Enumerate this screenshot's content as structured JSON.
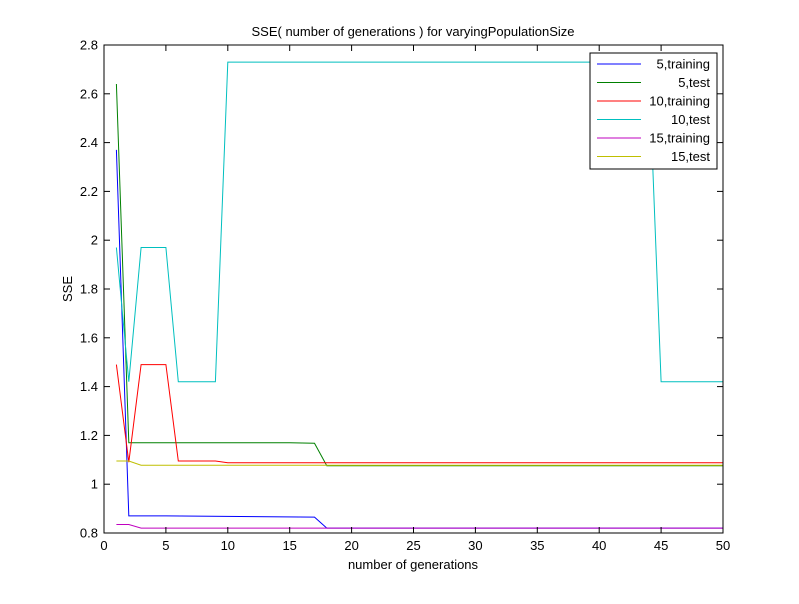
{
  "chart_data": {
    "type": "line",
    "title": "SSE( number of generations ) for varyingPopulationSize",
    "xlabel": "number of generations",
    "ylabel": "SSE",
    "xlim": [
      0,
      50
    ],
    "ylim": [
      0.8,
      2.8
    ],
    "xticks": [
      0,
      5,
      10,
      15,
      20,
      25,
      30,
      35,
      40,
      45,
      50
    ],
    "yticks": [
      0.8,
      1,
      1.2,
      1.4,
      1.6,
      1.8,
      2,
      2.2,
      2.4,
      2.6,
      2.8
    ],
    "xtick_labels": [
      "0",
      "5",
      "10",
      "15",
      "20",
      "25",
      "30",
      "35",
      "40",
      "45",
      "50"
    ],
    "ytick_labels": [
      "0.8",
      "1",
      "1.2",
      "1.4",
      "1.6",
      "1.8",
      "2",
      "2.2",
      "2.4",
      "2.6",
      "2.8"
    ],
    "grid": false,
    "legend_position": "top-right",
    "series": [
      {
        "name": "5,training",
        "color": "#0000ff",
        "x": [
          1,
          2,
          3,
          4,
          5,
          17,
          18,
          50
        ],
        "y": [
          2.37,
          0.87,
          0.87,
          0.87,
          0.87,
          0.865,
          0.82,
          0.82
        ]
      },
      {
        "name": "5,test",
        "color": "#008000",
        "x": [
          1,
          2,
          3,
          4,
          5,
          15,
          17,
          18,
          50
        ],
        "y": [
          2.64,
          1.17,
          1.17,
          1.17,
          1.17,
          1.17,
          1.168,
          1.076,
          1.076
        ]
      },
      {
        "name": "10,training",
        "color": "#ff0000",
        "x": [
          1,
          2,
          3,
          4,
          5,
          6,
          9,
          10,
          50
        ],
        "y": [
          1.49,
          1.09,
          1.49,
          1.49,
          1.49,
          1.095,
          1.095,
          1.088,
          1.088
        ]
      },
      {
        "name": "10,test",
        "color": "#00bfbf",
        "x": [
          1,
          2,
          3,
          4,
          5,
          6,
          9,
          10,
          44,
          45,
          50
        ],
        "y": [
          1.97,
          1.42,
          1.97,
          1.97,
          1.97,
          1.42,
          1.42,
          2.73,
          2.73,
          1.42,
          1.42
        ]
      },
      {
        "name": "15,training",
        "color": "#bf00bf",
        "x": [
          1,
          2,
          3,
          4,
          50
        ],
        "y": [
          0.835,
          0.835,
          0.82,
          0.82,
          0.82
        ]
      },
      {
        "name": "15,test",
        "color": "#bfbf00",
        "x": [
          1,
          2,
          3,
          4,
          50
        ],
        "y": [
          1.095,
          1.095,
          1.078,
          1.078,
          1.078
        ]
      }
    ]
  }
}
